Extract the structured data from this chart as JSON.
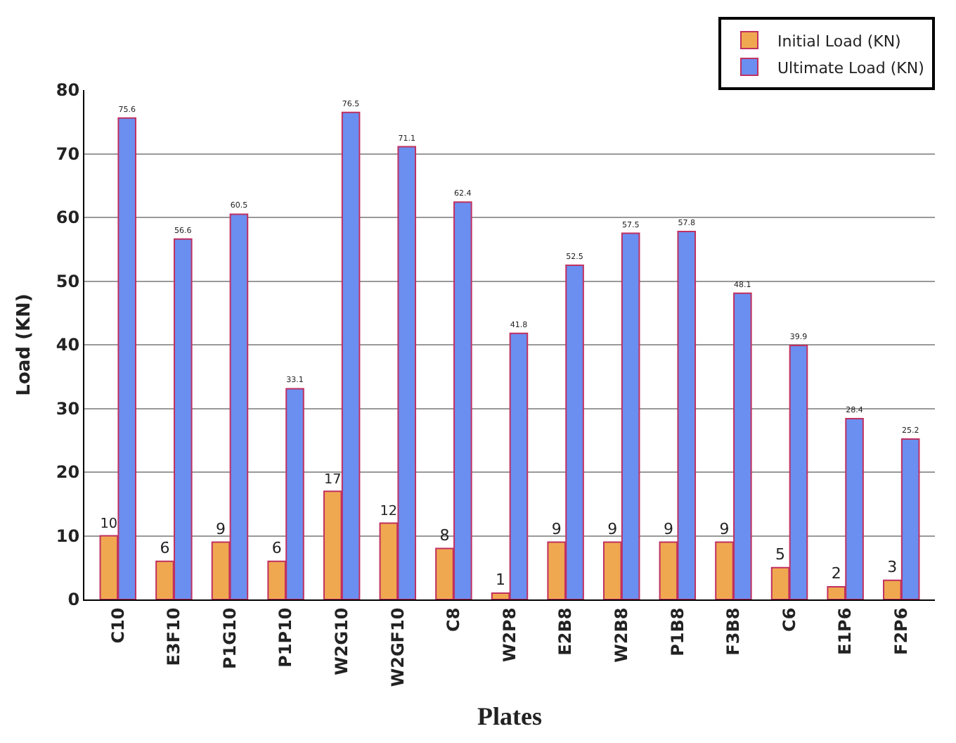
{
  "chart_data": {
    "type": "bar",
    "xlabel": "Plates",
    "ylabel": "Load (KN)",
    "categories": [
      "C10",
      "E3F10",
      "P1G10",
      "P1P10",
      "W2G10",
      "W2GF10",
      "C8",
      "W2P8",
      "E2B8",
      "W2B8",
      "P1B8",
      "F3B8",
      "C6",
      "E1P6",
      "F2P6"
    ],
    "series": [
      {
        "name": "Initial Load (KN)",
        "color": "#f0a850",
        "values": [
          10,
          6,
          9,
          6,
          17,
          12,
          8,
          1,
          9,
          9,
          9,
          9,
          5,
          2,
          3
        ]
      },
      {
        "name": "Ultimate Load (KN)",
        "color": "#6b8ff0",
        "values": [
          75.6,
          56.6,
          60.5,
          33.1,
          76.5,
          71.1,
          62.4,
          41.8,
          52.5,
          57.5,
          57.8,
          48.1,
          39.9,
          28.4,
          25.2
        ]
      }
    ],
    "ylim": [
      0,
      80
    ],
    "yticks": [
      0,
      10,
      20,
      30,
      40,
      50,
      60,
      70,
      80
    ],
    "grid": "y",
    "legend": "top right",
    "data_labels": true
  }
}
